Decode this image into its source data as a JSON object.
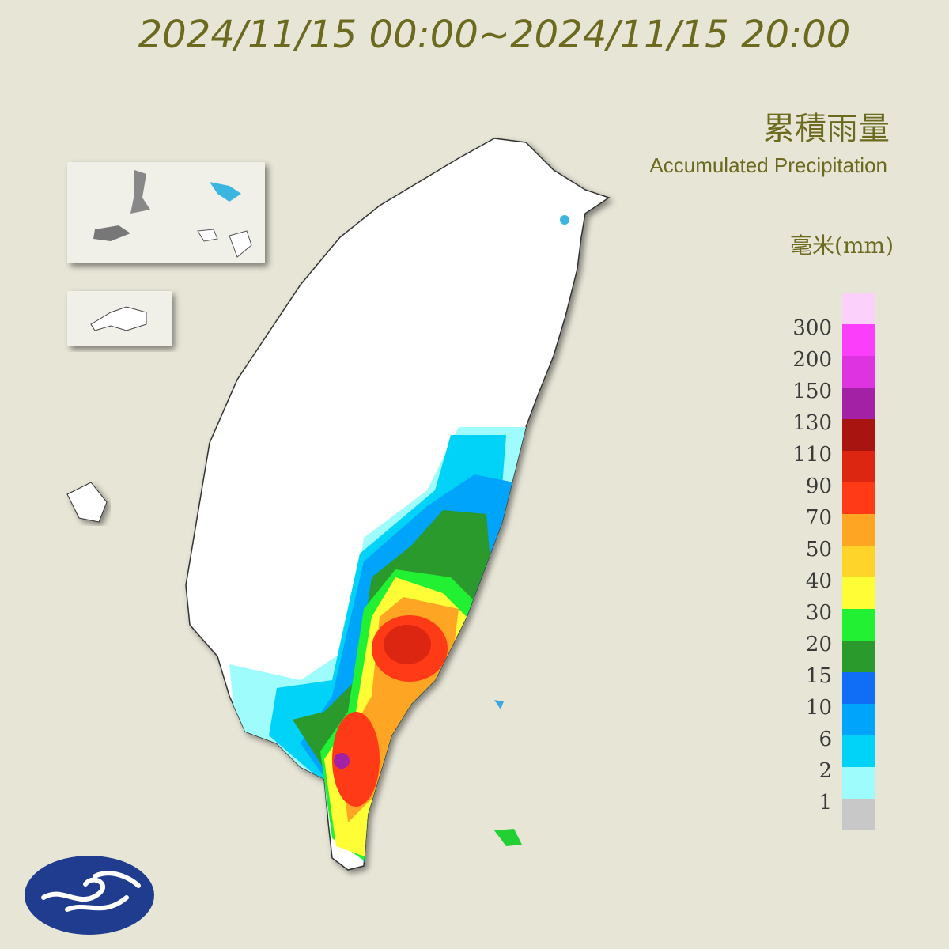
{
  "header": {
    "title": "2024/11/15 00:00~2024/11/15 20:00"
  },
  "legend": {
    "title": "累積雨量",
    "subtitle": "Accumulated Precipitation",
    "unit": "毫米(mm)",
    "levels": [
      1,
      2,
      6,
      10,
      15,
      20,
      30,
      40,
      50,
      70,
      90,
      110,
      130,
      150,
      200,
      300
    ],
    "colors": [
      "#c8c8c8",
      "#9ffcfc",
      "#00d2f8",
      "#00a5fb",
      "#0f6ef5",
      "#2a9a2c",
      "#22f033",
      "#fffd36",
      "#ffd42a",
      "#ffa524",
      "#ff3a16",
      "#dc2612",
      "#a81410",
      "#a321a5",
      "#dd33e0",
      "#fa3efa",
      "#fbd0fa"
    ]
  }
}
